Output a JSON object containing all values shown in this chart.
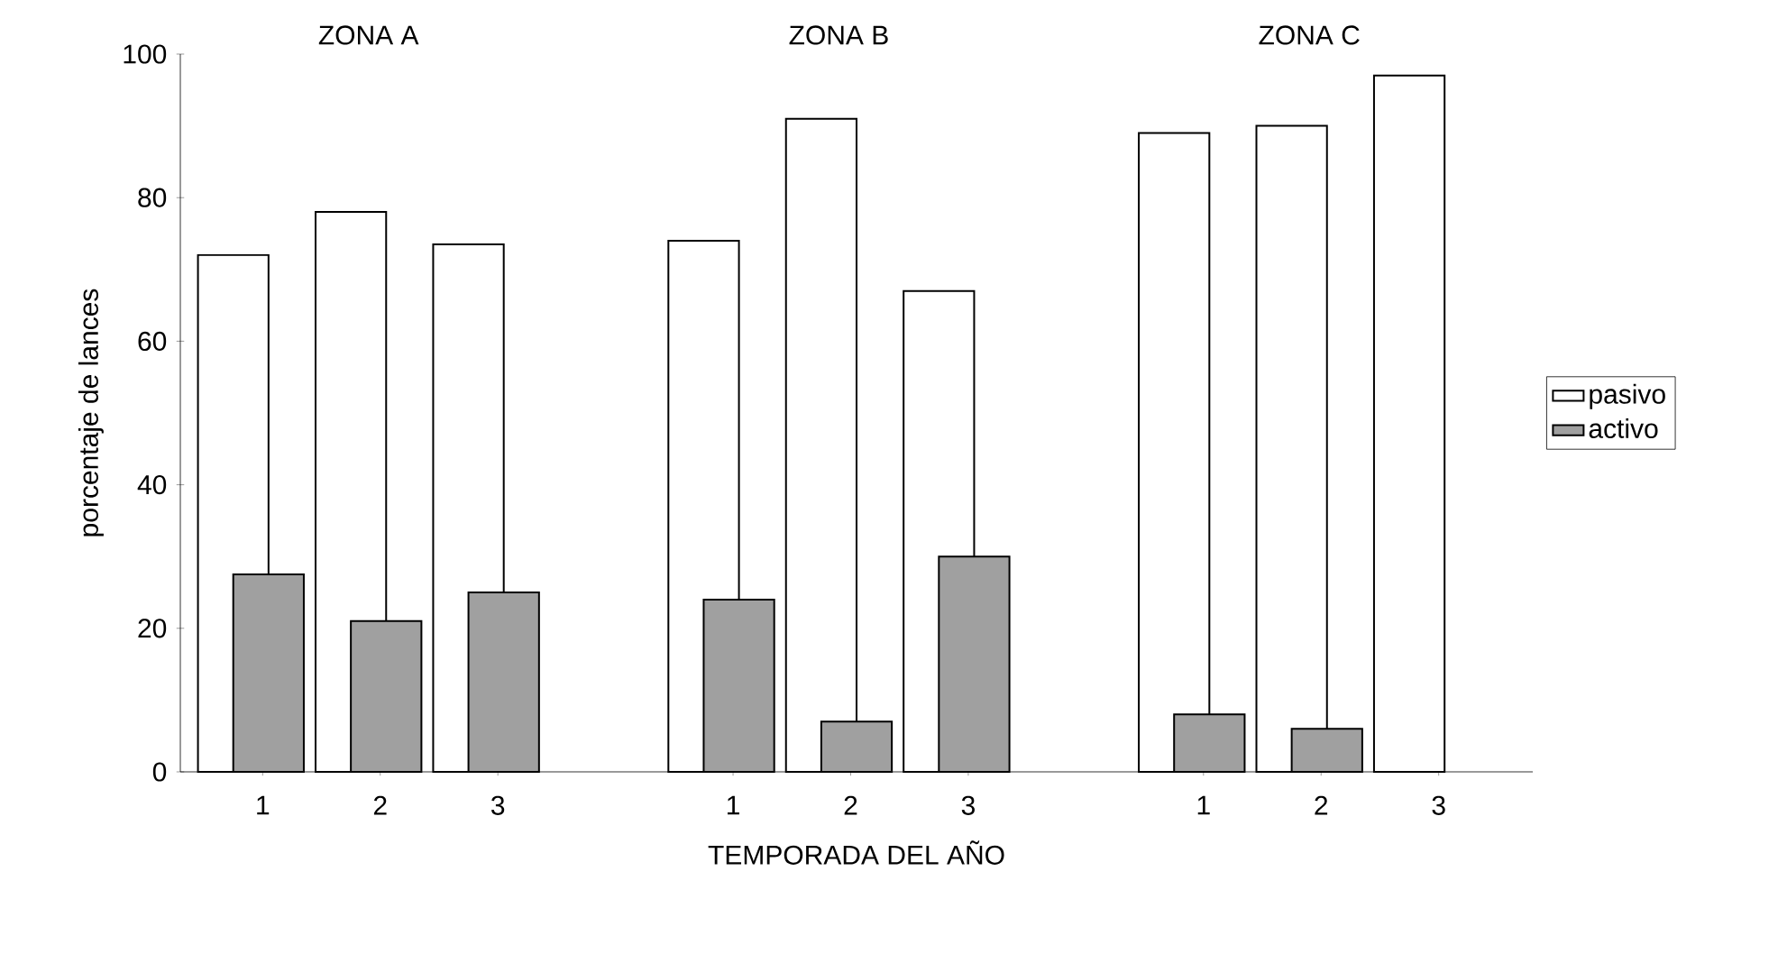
{
  "chart_data": {
    "type": "bar",
    "xlabel": "TEMPORADA DEL AÑO",
    "ylabel": "porcentaje de lances",
    "categories": [
      "1",
      "2",
      "3",
      null,
      "1",
      "2",
      "3",
      null,
      "1",
      "2",
      "3"
    ],
    "series": [
      {
        "name": "pasivo",
        "color": "#ffffff",
        "values": [
          72,
          78,
          73.5,
          null,
          74,
          91,
          67,
          null,
          89,
          90,
          97
        ]
      },
      {
        "name": "activo",
        "color": "#a0a0a0",
        "values": [
          27.5,
          21,
          25,
          null,
          24,
          7,
          30,
          null,
          8,
          6,
          null
        ]
      }
    ],
    "annotations": [
      "ZONA A",
      "ZONA B",
      "ZONA C"
    ],
    "ylim": [
      0,
      100
    ],
    "yticks": [
      0,
      20,
      40,
      60,
      80,
      100
    ],
    "legend": "right"
  }
}
